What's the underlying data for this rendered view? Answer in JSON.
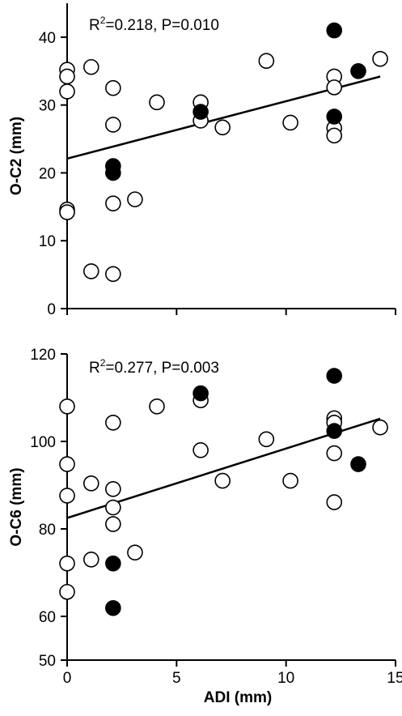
{
  "chart_data": [
    {
      "type": "scatter",
      "title": "",
      "xlabel": "",
      "ylabel": "O-C2 (mm)",
      "xlim": [
        0,
        15
      ],
      "ylim": [
        0,
        45
      ],
      "x_ticks": [
        "0",
        "5",
        "10",
        "15"
      ],
      "x_tick_labels_shown": false,
      "y_ticks": [
        "0",
        "10",
        "20",
        "30",
        "40"
      ],
      "annotation": {
        "prefix": "R",
        "sup": "2",
        "suffix": "=0.218, P=0.010"
      },
      "regression": {
        "x": [
          0,
          14.3
        ],
        "y": [
          22.1,
          34.2
        ]
      },
      "grid": false,
      "legend": "none",
      "series": [
        {
          "marker": "open-circle",
          "points": [
            [
              0,
              35.2
            ],
            [
              0,
              34.2
            ],
            [
              0,
              32
            ],
            [
              0,
              14.6
            ],
            [
              0,
              14.2
            ],
            [
              1.1,
              35.6
            ],
            [
              1.1,
              5.5
            ],
            [
              2.1,
              32.5
            ],
            [
              2.1,
              27.1
            ],
            [
              2.1,
              15.5
            ],
            [
              2.1,
              5.1
            ],
            [
              3.1,
              16.1
            ],
            [
              4.1,
              30.4
            ],
            [
              6.1,
              30.4
            ],
            [
              6.1,
              27.7
            ],
            [
              7.1,
              26.7
            ],
            [
              9.1,
              36.5
            ],
            [
              10.2,
              27.4
            ],
            [
              12.2,
              34.2
            ],
            [
              12.2,
              32.6
            ],
            [
              12.2,
              26.6
            ],
            [
              12.2,
              25.5
            ],
            [
              14.3,
              36.8
            ]
          ]
        },
        {
          "marker": "filled-circle",
          "points": [
            [
              2.1,
              21
            ],
            [
              2.1,
              20
            ],
            [
              6.1,
              29
            ],
            [
              12.2,
              41
            ],
            [
              12.2,
              28.3
            ],
            [
              13.3,
              35
            ]
          ]
        }
      ]
    },
    {
      "type": "scatter",
      "title": "",
      "xlabel": "ADI (mm)",
      "ylabel": "O-C6 (mm)",
      "xlim": [
        0,
        15
      ],
      "ylim": [
        50,
        120
      ],
      "x_ticks": [
        "0",
        "5",
        "10",
        "15"
      ],
      "x_tick_labels_shown": true,
      "y_ticks": [
        "50",
        "60",
        "80",
        "100",
        "120"
      ],
      "annotation": {
        "prefix": "R",
        "sup": "2",
        "suffix": "=0.277, P=0.003"
      },
      "regression": {
        "x": [
          0,
          14.3
        ],
        "y": [
          82.5,
          105.2
        ]
      },
      "grid": false,
      "legend": "none",
      "series": [
        {
          "marker": "open-circle",
          "points": [
            [
              0,
              108
            ],
            [
              0,
              94.8
            ],
            [
              0,
              87.6
            ],
            [
              0,
              72.1
            ],
            [
              0,
              65.6
            ],
            [
              1.1,
              90.4
            ],
            [
              1.1,
              73
            ],
            [
              2.1,
              104.3
            ],
            [
              2.1,
              89.1
            ],
            [
              2.1,
              84.9
            ],
            [
              2.1,
              81.1
            ],
            [
              3.1,
              74.6
            ],
            [
              4.1,
              108
            ],
            [
              6.1,
              109.4
            ],
            [
              6.1,
              98
            ],
            [
              7.1,
              91
            ],
            [
              9.1,
              100.5
            ],
            [
              10.2,
              91
            ],
            [
              12.2,
              105.3
            ],
            [
              12.2,
              104.3
            ],
            [
              12.2,
              97.3
            ],
            [
              12.2,
              86.1
            ],
            [
              14.3,
              103.2
            ]
          ]
        },
        {
          "marker": "filled-circle",
          "points": [
            [
              2.1,
              72.1
            ],
            [
              2.1,
              61.9
            ],
            [
              6.1,
              111
            ],
            [
              12.2,
              115
            ],
            [
              12.2,
              102.4
            ],
            [
              13.3,
              94.8
            ]
          ]
        }
      ]
    }
  ]
}
